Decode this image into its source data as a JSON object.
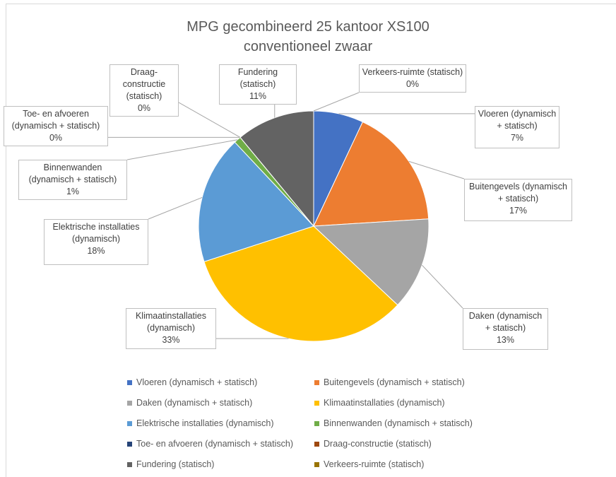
{
  "chart_data": {
    "type": "pie",
    "title": "MPG gecombineerd 25 kantoor XS100 conventioneel zwaar",
    "categories": [
      "Vloeren (dynamisch + statisch)",
      "Buitengevels (dynamisch + statisch)",
      "Daken (dynamisch + statisch)",
      "Klimaatinstallaties (dynamisch)",
      "Elektrische installaties (dynamisch)",
      "Binnenwanden (dynamisch + statisch)",
      "Toe- en afvoeren (dynamisch + statisch)",
      "Draag-constructie (statisch)",
      "Fundering (statisch)",
      "Verkeers-ruimte (statisch)"
    ],
    "values": [
      7,
      17,
      13,
      33,
      18,
      1,
      0,
      0,
      11,
      0
    ],
    "value_labels": [
      "7%",
      "17%",
      "13%",
      "33%",
      "18%",
      "1%",
      "0%",
      "0%",
      "11%",
      "0%"
    ],
    "colors": [
      "#4472c4",
      "#ed7d31",
      "#a5a5a5",
      "#ffc000",
      "#5b9bd5",
      "#70ad47",
      "#264478",
      "#9e480e",
      "#636363",
      "#997300"
    ],
    "legend": "bottom"
  }
}
